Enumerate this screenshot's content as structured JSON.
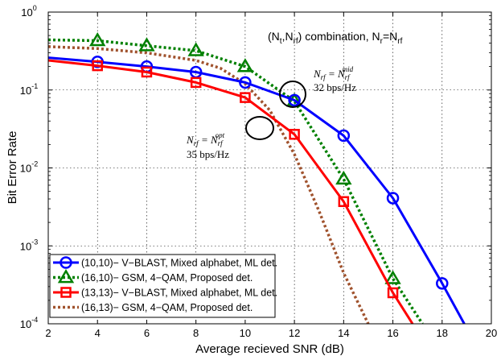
{
  "chart_data": {
    "type": "line",
    "title": "(N_t,N_rf) combination, N_r=N_rf",
    "xlabel": "Average recieved SNR (dB)",
    "ylabel": "Bit Error Rate",
    "xlim": [
      2,
      20
    ],
    "ylim": [
      0.0001,
      1
    ],
    "yscale": "log",
    "grid": true,
    "legend_position": "bottom-left",
    "x_ticks": [
      "2",
      "4",
      "6",
      "8",
      "10",
      "12",
      "14",
      "16",
      "18",
      "20"
    ],
    "y_ticks": [
      {
        "base": "10",
        "exp": "0",
        "value": 1
      },
      {
        "base": "10",
        "exp": "-1",
        "value": 0.1
      },
      {
        "base": "10",
        "exp": "-2",
        "value": 0.01
      },
      {
        "base": "10",
        "exp": "-3",
        "value": 0.001
      },
      {
        "base": "10",
        "exp": "-4",
        "value": 0.0001
      }
    ],
    "series": [
      {
        "name": "(10,10)− V−BLAST, Mixed alphabet, ML det.",
        "color": "#0000ff",
        "style": "solid",
        "marker": "circle",
        "x": [
          2,
          4,
          6,
          8,
          10,
          12,
          14,
          16,
          18,
          18.9
        ],
        "y": [
          0.26,
          0.23,
          0.2,
          0.17,
          0.125,
          0.074,
          0.026,
          0.0041,
          0.00033,
          0.0001
        ],
        "marker_x": [
          4,
          6,
          8,
          10,
          12,
          14,
          16,
          18
        ]
      },
      {
        "name": "(16,10)− GSM, 4−QAM, Proposed det.",
        "color": "#008000",
        "style": "dotted",
        "marker": "triangle",
        "x": [
          2,
          4,
          6,
          8,
          10,
          12,
          14,
          16,
          17.2
        ],
        "y": [
          0.44,
          0.43,
          0.37,
          0.32,
          0.2,
          0.072,
          0.0072,
          0.00038,
          0.0001
        ],
        "marker_x": [
          4,
          6,
          8,
          10,
          12,
          14,
          16
        ]
      },
      {
        "name": "(13,13)− V−BLAST, Mixed alphabet, ML det.",
        "color": "#ff0000",
        "style": "solid",
        "marker": "square",
        "x": [
          2,
          4,
          6,
          8,
          10,
          12,
          14,
          16,
          16.8
        ],
        "y": [
          0.24,
          0.205,
          0.17,
          0.125,
          0.08,
          0.027,
          0.0037,
          0.00025,
          0.0001
        ],
        "marker_x": [
          4,
          6,
          8,
          10,
          12,
          14,
          16
        ]
      },
      {
        "name": "(16,13)− GSM, 4−QAM, Proposed det.",
        "color": "#a0522d",
        "style": "dotted",
        "marker": "none",
        "x": [
          2,
          4,
          6,
          8,
          9,
          10,
          11,
          12,
          13,
          14,
          15
        ],
        "y": [
          0.36,
          0.34,
          0.3,
          0.24,
          0.19,
          0.12,
          0.055,
          0.015,
          0.0028,
          0.00045,
          0.0001
        ],
        "marker_x": []
      }
    ],
    "annotations": {
      "top_label": {
        "pre": "(N",
        "sub1": "t",
        "mid": ",N",
        "sub2": "rf",
        "post1": ") combination, N",
        "sub3": "r",
        "post2": "=N",
        "sub4": "rf"
      },
      "mid_label": {
        "lhs": "N",
        "lhs_sub": "rf",
        "eq": " = N",
        "rhs_sub": "rf",
        "rhs_sup": "mid",
        "rate": "32 bps/Hz"
      },
      "opt_label": {
        "lhs": "N",
        "lhs_sub": "rf",
        "eq": " = N",
        "rhs_sub": "rf",
        "rhs_sup": "opt",
        "rate": "35 bps/Hz"
      }
    }
  }
}
